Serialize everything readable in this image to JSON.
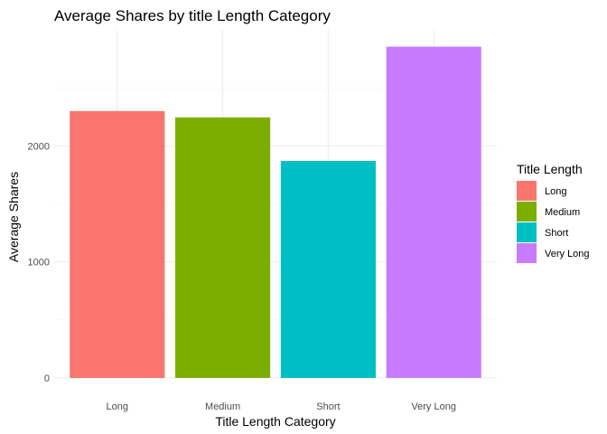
{
  "chart_data": {
    "type": "bar",
    "title": "Average Shares by title Length Category",
    "xlabel": "Title Length Category",
    "ylabel": "Average Shares",
    "categories": [
      "Long",
      "Medium",
      "Short",
      "Very Long"
    ],
    "values": [
      2300,
      2245,
      1870,
      2855
    ],
    "colors": [
      "#F8766D",
      "#7CAE00",
      "#00BFC4",
      "#C77CFF"
    ],
    "yticks": [
      0,
      1000,
      2000
    ],
    "ytick_labels": [
      "0",
      "1000",
      "2000"
    ],
    "ylim": [
      0,
      3000
    ],
    "grid": true,
    "legend": {
      "title": "Title Length",
      "placement": "right",
      "entries": [
        "Long",
        "Medium",
        "Short",
        "Very Long"
      ]
    }
  }
}
